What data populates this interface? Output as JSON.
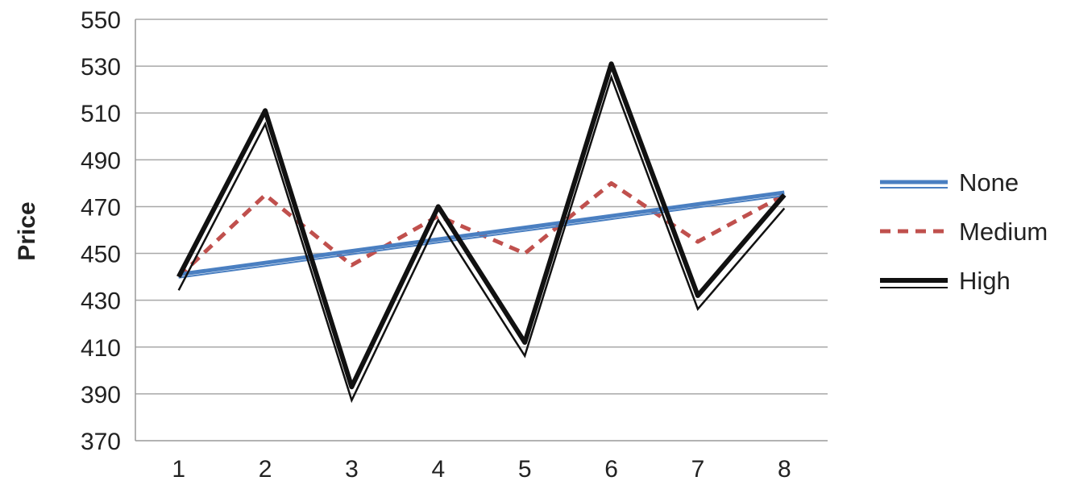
{
  "chart_data": {
    "type": "line",
    "title": "",
    "xlabel": "",
    "ylabel": "Price",
    "x": [
      1,
      2,
      3,
      4,
      5,
      6,
      7,
      8
    ],
    "ylim": [
      370,
      550
    ],
    "yticks": [
      370,
      390,
      410,
      430,
      450,
      470,
      490,
      510,
      530,
      550
    ],
    "grid": "horizontal",
    "legend": "right",
    "series": [
      {
        "name": "None",
        "style": "double-line",
        "color": "#4a7fc1",
        "values": [
          441,
          446,
          451,
          456,
          461,
          466,
          471,
          476
        ]
      },
      {
        "name": "Medium",
        "style": "dashed",
        "color": "#c0504d",
        "values": [
          440,
          475,
          445,
          466,
          450,
          480,
          455,
          475
        ]
      },
      {
        "name": "High",
        "style": "double-line",
        "color": "#111111",
        "values": [
          440,
          511,
          393,
          470,
          412,
          531,
          432,
          475
        ]
      }
    ]
  }
}
